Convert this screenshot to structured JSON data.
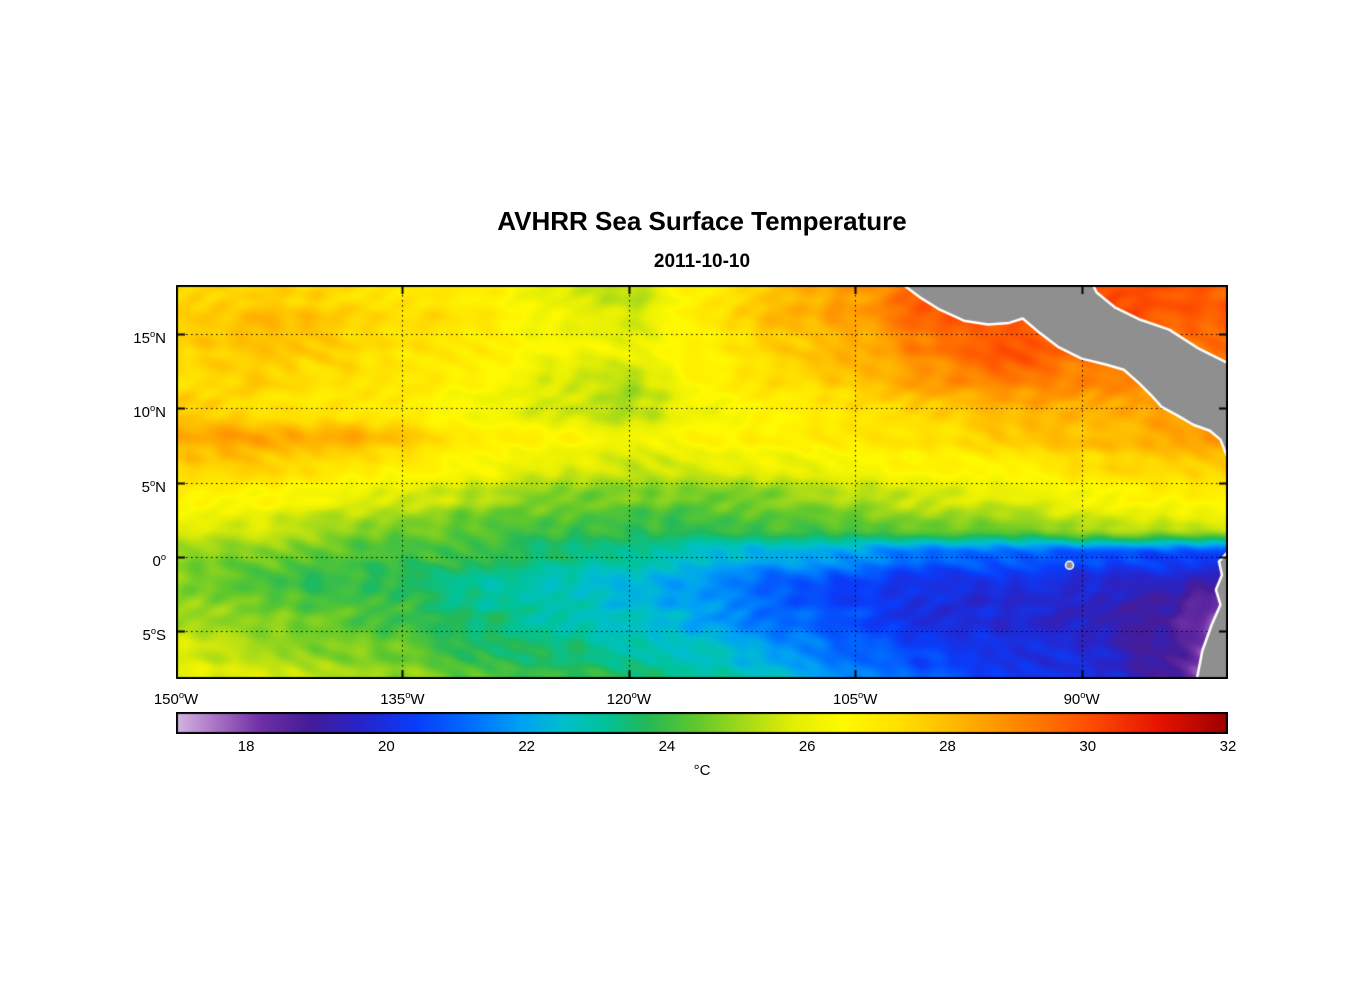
{
  "title": "AVHRR Sea Surface Temperature",
  "subtitle": "2011-10-10",
  "colorbar": {
    "label": "°C",
    "range": [
      17,
      32
    ],
    "ticks": [
      18,
      20,
      22,
      24,
      26,
      28,
      30,
      32
    ]
  },
  "axes": {
    "degree_char": "o",
    "lon_range": [
      -150,
      -80.3
    ],
    "lat_range": [
      18.3,
      -8.2
    ],
    "x_ticks": [
      {
        "value": -150,
        "num": "150",
        "dir": "W"
      },
      {
        "value": -135,
        "num": "135",
        "dir": "W"
      },
      {
        "value": -120,
        "num": "120",
        "dir": "W"
      },
      {
        "value": -105,
        "num": "105",
        "dir": "W"
      },
      {
        "value": -90,
        "num": "90",
        "dir": "W"
      }
    ],
    "y_ticks": [
      {
        "value": 15,
        "num": "15",
        "dir": "N"
      },
      {
        "value": 10,
        "num": "10",
        "dir": "N"
      },
      {
        "value": 5,
        "num": "5",
        "dir": "N"
      },
      {
        "value": 0,
        "num": "0",
        "dir": ""
      },
      {
        "value": -5,
        "num": "5",
        "dir": "S"
      }
    ]
  },
  "chart_data": {
    "type": "heatmap",
    "title": "AVHRR Sea Surface Temperature",
    "date": "2011-10-10",
    "units": "°C",
    "value_range": [
      17,
      32
    ],
    "x_lons": [
      -150,
      -145,
      -140,
      -135,
      -130,
      -125,
      -120,
      -115,
      -110,
      -105,
      -100,
      -95,
      -90,
      -85,
      -80
    ],
    "y_lats": [
      18,
      16,
      14,
      12,
      10,
      8,
      6,
      4,
      2,
      0,
      -2,
      -4,
      -6,
      -8
    ],
    "sst_grid": [
      [
        27.6,
        27.6,
        27.4,
        27.2,
        26.8,
        26.0,
        25.2,
        27.0,
        28.0,
        28.6,
        30.0,
        30.6,
        30.2,
        30.0,
        29.8
      ],
      [
        27.8,
        28.0,
        27.8,
        27.4,
        27.0,
        26.2,
        25.6,
        27.0,
        28.0,
        28.6,
        29.6,
        30.0,
        30.0,
        29.8,
        29.8
      ],
      [
        27.6,
        27.8,
        27.6,
        27.2,
        26.8,
        26.4,
        26.0,
        26.8,
        27.6,
        28.2,
        29.2,
        30.0,
        29.6,
        29.4,
        29.6
      ],
      [
        27.2,
        27.6,
        27.2,
        27.0,
        26.6,
        25.6,
        25.2,
        26.6,
        27.2,
        27.8,
        28.6,
        29.2,
        29.0,
        29.0,
        29.0
      ],
      [
        27.6,
        27.2,
        27.0,
        26.8,
        26.2,
        25.6,
        25.2,
        26.2,
        26.8,
        27.2,
        27.8,
        28.2,
        28.4,
        28.6,
        28.6
      ],
      [
        28.2,
        28.6,
        28.4,
        27.8,
        27.0,
        26.6,
        26.2,
        26.6,
        26.8,
        27.0,
        27.2,
        27.6,
        28.0,
        28.2,
        28.6
      ],
      [
        27.6,
        27.6,
        27.2,
        26.8,
        26.4,
        25.8,
        25.6,
        25.8,
        26.0,
        26.4,
        26.6,
        26.8,
        27.2,
        27.6,
        27.8
      ],
      [
        26.8,
        26.6,
        26.2,
        25.8,
        25.2,
        24.8,
        24.6,
        24.6,
        24.8,
        25.2,
        25.6,
        25.8,
        26.2,
        26.6,
        26.8
      ],
      [
        26.0,
        25.6,
        25.0,
        24.6,
        24.2,
        24.0,
        23.8,
        23.8,
        24.0,
        24.2,
        24.4,
        24.6,
        25.0,
        25.4,
        25.6
      ],
      [
        24.8,
        24.6,
        24.2,
        24.0,
        23.8,
        23.4,
        23.0,
        22.4,
        22.0,
        21.6,
        21.0,
        20.8,
        20.6,
        20.4,
        20.2
      ],
      [
        24.6,
        24.2,
        23.8,
        23.6,
        23.0,
        22.6,
        22.2,
        21.6,
        20.8,
        20.2,
        20.0,
        19.8,
        19.8,
        19.4,
        18.6
      ],
      [
        25.0,
        24.8,
        24.4,
        24.0,
        23.4,
        23.0,
        22.6,
        22.0,
        21.2,
        20.6,
        20.0,
        19.8,
        19.6,
        19.0,
        17.8
      ],
      [
        25.6,
        25.2,
        24.8,
        24.4,
        23.8,
        23.4,
        23.0,
        22.6,
        21.8,
        21.0,
        20.4,
        20.0,
        19.8,
        19.0,
        17.6
      ],
      [
        26.0,
        25.6,
        25.2,
        24.8,
        24.2,
        23.8,
        23.6,
        23.0,
        22.4,
        21.6,
        20.8,
        20.4,
        20.0,
        19.2,
        17.4
      ]
    ]
  },
  "colormap_stops": [
    [
      17.0,
      214,
      182,
      228
    ],
    [
      17.6,
      168,
      112,
      196
    ],
    [
      18.2,
      112,
      48,
      166
    ],
    [
      18.9,
      70,
      28,
      152
    ],
    [
      19.6,
      40,
      36,
      200
    ],
    [
      20.4,
      10,
      60,
      250
    ],
    [
      21.2,
      0,
      110,
      255
    ],
    [
      21.9,
      0,
      160,
      245
    ],
    [
      22.5,
      0,
      190,
      205
    ],
    [
      23.1,
      0,
      195,
      155
    ],
    [
      23.7,
      35,
      185,
      90
    ],
    [
      24.4,
      95,
      200,
      45
    ],
    [
      25.1,
      165,
      218,
      25
    ],
    [
      25.8,
      228,
      238,
      5
    ],
    [
      26.5,
      255,
      250,
      0
    ],
    [
      27.3,
      255,
      225,
      0
    ],
    [
      28.1,
      255,
      185,
      0
    ],
    [
      29.0,
      255,
      135,
      0
    ],
    [
      30.0,
      255,
      80,
      0
    ],
    [
      31.0,
      232,
      20,
      0
    ],
    [
      32.0,
      158,
      0,
      0
    ]
  ],
  "land": {
    "fill_color": "#8f8f8f",
    "coast_color": "#ffffff",
    "polygons": {
      "central_america": [
        [
          -102.2,
          18.6
        ],
        [
          -100.6,
          17.4
        ],
        [
          -99.5,
          16.7
        ],
        [
          -97.8,
          15.9
        ],
        [
          -96.2,
          15.65
        ],
        [
          -94.8,
          15.75
        ],
        [
          -93.9,
          16.05
        ],
        [
          -92.8,
          15.1
        ],
        [
          -91.5,
          14.1
        ],
        [
          -90.0,
          13.35
        ],
        [
          -88.4,
          12.95
        ],
        [
          -87.2,
          12.6
        ],
        [
          -86.2,
          11.7
        ],
        [
          -85.4,
          10.9
        ],
        [
          -84.7,
          10.1
        ],
        [
          -83.6,
          9.5
        ],
        [
          -82.6,
          8.9
        ],
        [
          -81.5,
          8.5
        ],
        [
          -80.8,
          7.9
        ],
        [
          -80.45,
          7.0
        ],
        [
          -80.0,
          6.0
        ],
        [
          -80.0,
          12.9
        ],
        [
          -82.2,
          14.0
        ],
        [
          -84.2,
          15.3
        ],
        [
          -86.2,
          16.0
        ],
        [
          -87.8,
          16.8
        ],
        [
          -89.0,
          17.8
        ],
        [
          -89.4,
          18.6
        ]
      ],
      "south_america": [
        [
          -80.0,
          0.7
        ],
        [
          -80.9,
          -0.3
        ],
        [
          -80.7,
          -1.2
        ],
        [
          -81.1,
          -2.2
        ],
        [
          -80.8,
          -3.2
        ],
        [
          -81.4,
          -4.6
        ],
        [
          -82.0,
          -6.3
        ],
        [
          -82.4,
          -8.4
        ],
        [
          -80.0,
          -8.4
        ]
      ]
    },
    "islands": [
      {
        "name": "galapagos",
        "lon": -90.8,
        "lat": -0.55
      }
    ]
  }
}
